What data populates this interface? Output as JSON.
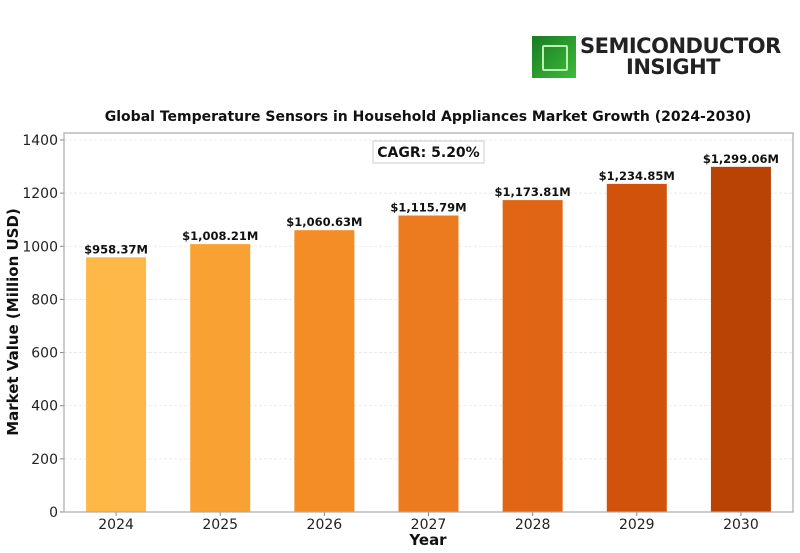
{
  "logo": {
    "line1": "SEMICONDUCTOR",
    "line2": "INSIGHT",
    "icon": "microchip-icon",
    "brand_color": "#2ea42f"
  },
  "chart_data": {
    "type": "bar",
    "title": "Global Temperature Sensors in Household Appliances Market Growth (2024-2030)",
    "xlabel": "Year",
    "ylabel": "Market Value (Million USD)",
    "categories": [
      "2024",
      "2025",
      "2026",
      "2027",
      "2028",
      "2029",
      "2030"
    ],
    "values": [
      958.37,
      1008.21,
      1060.63,
      1115.79,
      1173.81,
      1234.85,
      1299.06
    ],
    "data_labels": [
      "$958.37M",
      "$1,008.21M",
      "$1,060.63M",
      "$1,115.79M",
      "$1,173.81M",
      "$1,234.85M",
      "$1,299.06M"
    ],
    "colors": [
      "#fdb847",
      "#f9a233",
      "#f48d26",
      "#ec7a1e",
      "#e06515",
      "#d0520b",
      "#b84305"
    ],
    "ylim": [
      0,
      1430
    ],
    "yticks": [
      0,
      200,
      400,
      600,
      800,
      1000,
      1200,
      1400
    ],
    "grid": true,
    "annotation": "CAGR: 5.20%"
  }
}
